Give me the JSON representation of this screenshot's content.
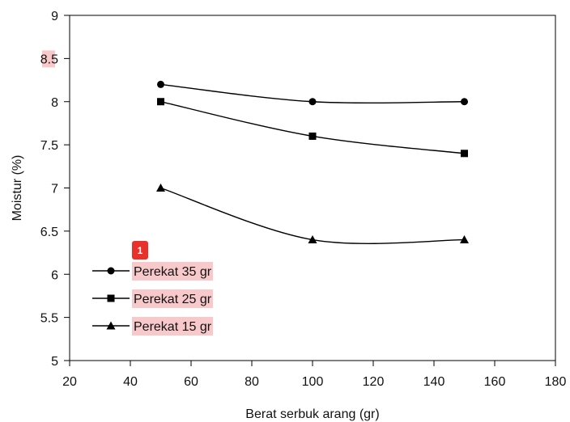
{
  "chart_data": {
    "type": "line",
    "xlabel": "Berat serbuk arang (gr)",
    "ylabel": "Moistur (%)",
    "xlim": [
      20,
      180
    ],
    "ylim": [
      5,
      9
    ],
    "xticks": [
      20,
      40,
      60,
      80,
      100,
      120,
      140,
      160,
      180
    ],
    "xtick_labels": [
      "20",
      "40",
      "60",
      "80",
      "100",
      "120",
      "140",
      "160",
      "180"
    ],
    "yticks": [
      5,
      5.5,
      6,
      6.5,
      7,
      7.5,
      8,
      8.5,
      9
    ],
    "ytick_labels": [
      "5",
      "5.5",
      "6",
      "6.5",
      "7",
      "7.5",
      "8",
      "8.5",
      "9"
    ],
    "grid": false,
    "legend_position": "bottom-left",
    "series": [
      {
        "name": "Perekat 35 gr",
        "marker": "circle",
        "x": [
          50,
          100,
          150
        ],
        "values": [
          8.2,
          8.0,
          8.0
        ]
      },
      {
        "name": "Perekat 25 gr",
        "marker": "square",
        "x": [
          50,
          100,
          150
        ],
        "values": [
          8.0,
          7.6,
          7.4
        ]
      },
      {
        "name": "Perekat 15 gr",
        "marker": "triangle",
        "x": [
          50,
          100,
          150
        ],
        "values": [
          7.0,
          6.4,
          6.4
        ]
      }
    ]
  },
  "annotation": {
    "badge": "1",
    "badge_color": "#e8312b",
    "highlight_color": "#f8c9cb"
  },
  "colors": {
    "line": "#000000",
    "axis": "#000000"
  }
}
